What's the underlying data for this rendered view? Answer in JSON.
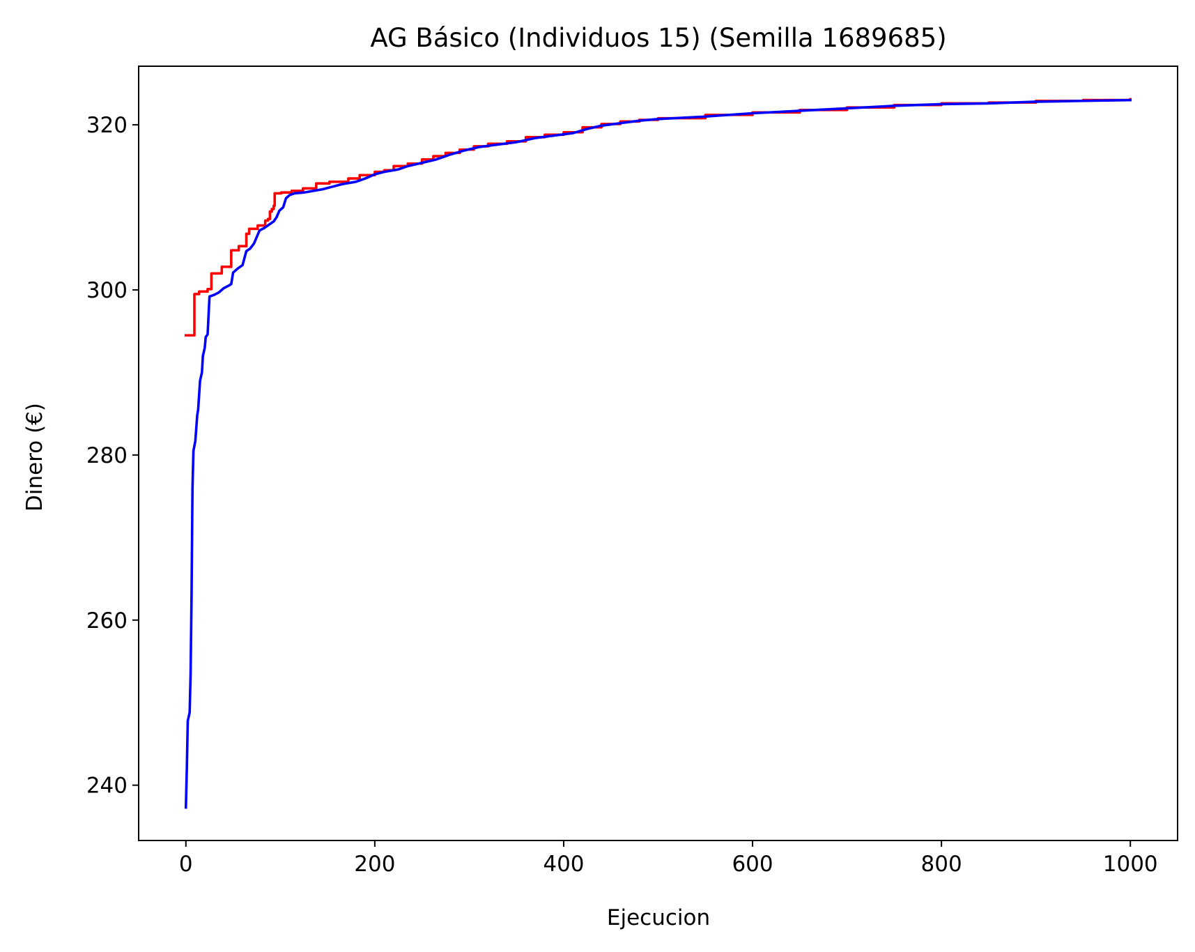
{
  "chart_data": {
    "type": "line",
    "title": "AG Básico (Individuos 15) (Semilla 1689685)",
    "xlabel": "Ejecucion",
    "ylabel": "Dinero (€)",
    "xlim": [
      -50,
      1050
    ],
    "ylim": [
      233.3,
      327.1
    ],
    "xticks": [
      0,
      200,
      400,
      600,
      800,
      1000
    ],
    "xtick_labels": [
      "0",
      "200",
      "400",
      "600",
      "800",
      "1000"
    ],
    "yticks": [
      240,
      260,
      280,
      300,
      320
    ],
    "ytick_labels": [
      "240",
      "260",
      "280",
      "300",
      "320"
    ],
    "grid": false,
    "legend": "none",
    "series": [
      {
        "color": "#ff0000",
        "step": true,
        "points": [
          [
            0,
            294.5
          ],
          [
            8,
            294.5
          ],
          [
            9,
            299.5
          ],
          [
            12,
            299.5
          ],
          [
            14,
            299.8
          ],
          [
            21,
            299.8
          ],
          [
            23,
            300.1
          ],
          [
            26,
            300.1
          ],
          [
            27,
            302.0
          ],
          [
            36,
            302.0
          ],
          [
            38,
            302.8
          ],
          [
            46,
            302.8
          ],
          [
            48,
            304.8
          ],
          [
            54,
            304.8
          ],
          [
            56,
            305.3
          ],
          [
            62,
            305.3
          ],
          [
            64,
            306.8
          ],
          [
            66,
            306.8
          ],
          [
            67,
            307.4
          ],
          [
            74,
            307.4
          ],
          [
            76,
            307.8
          ],
          [
            82,
            307.8
          ],
          [
            84,
            308.4
          ],
          [
            87,
            308.6
          ],
          [
            89,
            309.5
          ],
          [
            91,
            309.8
          ],
          [
            93,
            310.2
          ],
          [
            94,
            311.7
          ],
          [
            99,
            311.7
          ],
          [
            101,
            311.8
          ],
          [
            108,
            311.8
          ],
          [
            112,
            312.0
          ],
          [
            120,
            312.0
          ],
          [
            124,
            312.3
          ],
          [
            135,
            312.3
          ],
          [
            138,
            312.9
          ],
          [
            148,
            312.9
          ],
          [
            152,
            313.1
          ],
          [
            168,
            313.1
          ],
          [
            172,
            313.5
          ],
          [
            180,
            313.5
          ],
          [
            184,
            313.9
          ],
          [
            200,
            314.3
          ],
          [
            210,
            314.5
          ],
          [
            220,
            315.0
          ],
          [
            235,
            315.3
          ],
          [
            250,
            315.8
          ],
          [
            262,
            316.2
          ],
          [
            275,
            316.6
          ],
          [
            290,
            317.0
          ],
          [
            305,
            317.4
          ],
          [
            320,
            317.7
          ],
          [
            340,
            318.0
          ],
          [
            360,
            318.5
          ],
          [
            380,
            318.8
          ],
          [
            400,
            319.1
          ],
          [
            420,
            319.7
          ],
          [
            440,
            320.1
          ],
          [
            460,
            320.4
          ],
          [
            480,
            320.6
          ],
          [
            500,
            320.8
          ],
          [
            550,
            321.2
          ],
          [
            600,
            321.5
          ],
          [
            650,
            321.8
          ],
          [
            700,
            322.1
          ],
          [
            750,
            322.4
          ],
          [
            800,
            322.6
          ],
          [
            850,
            322.7
          ],
          [
            900,
            322.9
          ],
          [
            950,
            323.0
          ],
          [
            1000,
            323.1
          ]
        ]
      },
      {
        "color": "#0000ff",
        "step": false,
        "points": [
          [
            0,
            237.3
          ],
          [
            1,
            242.0
          ],
          [
            2,
            247.8
          ],
          [
            4,
            248.8
          ],
          [
            5,
            253.5
          ],
          [
            6,
            263.0
          ],
          [
            7,
            276.0
          ],
          [
            8,
            280.5
          ],
          [
            10,
            281.7
          ],
          [
            12,
            284.8
          ],
          [
            13,
            285.5
          ],
          [
            15,
            289.0
          ],
          [
            17,
            290.0
          ],
          [
            18,
            292.0
          ],
          [
            20,
            293.0
          ],
          [
            21,
            294.3
          ],
          [
            23,
            294.6
          ],
          [
            25,
            299.2
          ],
          [
            30,
            299.4
          ],
          [
            35,
            299.7
          ],
          [
            40,
            300.2
          ],
          [
            45,
            300.5
          ],
          [
            48,
            300.7
          ],
          [
            50,
            302.1
          ],
          [
            55,
            302.6
          ],
          [
            60,
            303.0
          ],
          [
            64,
            304.7
          ],
          [
            68,
            305.0
          ],
          [
            72,
            305.6
          ],
          [
            75,
            306.4
          ],
          [
            78,
            307.2
          ],
          [
            83,
            307.5
          ],
          [
            88,
            307.9
          ],
          [
            93,
            308.3
          ],
          [
            96,
            308.8
          ],
          [
            99,
            309.6
          ],
          [
            103,
            310.0
          ],
          [
            106,
            311.1
          ],
          [
            110,
            311.5
          ],
          [
            115,
            311.7
          ],
          [
            125,
            311.8
          ],
          [
            135,
            312.0
          ],
          [
            145,
            312.2
          ],
          [
            155,
            312.5
          ],
          [
            165,
            312.8
          ],
          [
            180,
            313.1
          ],
          [
            190,
            313.5
          ],
          [
            200,
            314.0
          ],
          [
            210,
            314.3
          ],
          [
            225,
            314.6
          ],
          [
            235,
            315.0
          ],
          [
            250,
            315.4
          ],
          [
            265,
            315.8
          ],
          [
            280,
            316.4
          ],
          [
            295,
            316.9
          ],
          [
            310,
            317.3
          ],
          [
            330,
            317.6
          ],
          [
            350,
            317.9
          ],
          [
            370,
            318.4
          ],
          [
            390,
            318.7
          ],
          [
            410,
            319.0
          ],
          [
            425,
            319.5
          ],
          [
            440,
            319.9
          ],
          [
            460,
            320.2
          ],
          [
            480,
            320.5
          ],
          [
            500,
            320.7
          ],
          [
            550,
            321.0
          ],
          [
            600,
            321.4
          ],
          [
            650,
            321.7
          ],
          [
            700,
            322.0
          ],
          [
            750,
            322.3
          ],
          [
            800,
            322.5
          ],
          [
            850,
            322.6
          ],
          [
            900,
            322.8
          ],
          [
            950,
            322.9
          ],
          [
            1000,
            323.0
          ]
        ]
      }
    ]
  }
}
